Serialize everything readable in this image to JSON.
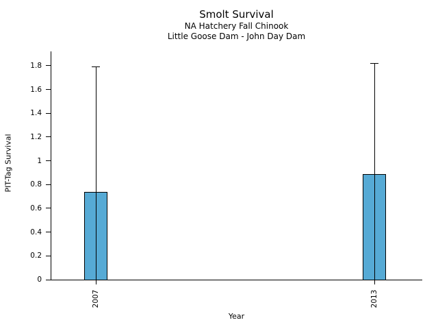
{
  "chart_data": {
    "type": "bar",
    "title": "Smolt Survival",
    "subtitle_lines": [
      "NA Hatchery Fall Chinook",
      "Little Goose Dam - John Day Dam"
    ],
    "xlabel": "Year",
    "ylabel": "PIT-Tag Survival",
    "categories": [
      "2007",
      "2013"
    ],
    "values": [
      0.74,
      0.89
    ],
    "error_upper": [
      1.79,
      1.82
    ],
    "ylim": [
      0,
      1.92
    ],
    "y_tick_values": [
      0,
      0.2,
      0.4,
      0.6,
      0.8,
      1,
      1.2,
      1.4,
      1.6,
      1.8
    ],
    "y_tick_labels": [
      "0",
      "0.2",
      "0.4",
      "0.6",
      "0.8",
      "1",
      "1.2",
      "1.4",
      "1.6",
      "1.8"
    ],
    "bar_color": "#56aad5",
    "bar_edge_color": "#000000",
    "axis_color": "#000000",
    "grid": false,
    "legend": null
  }
}
